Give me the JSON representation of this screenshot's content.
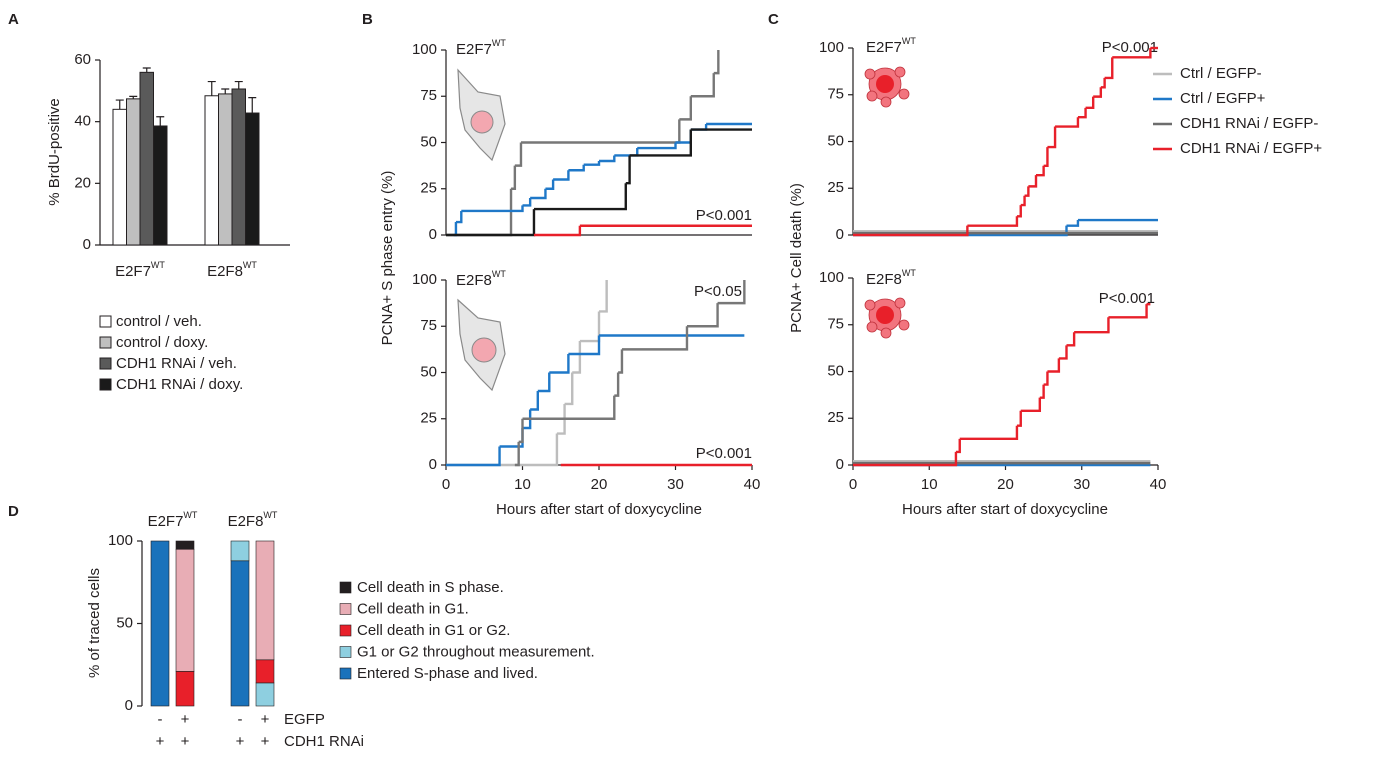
{
  "chart_data": [
    {
      "panel": "A",
      "type": "bar",
      "ylabel": "% BrdU-positive",
      "categories": [
        "E2F7",
        "E2F8"
      ],
      "category_superscript": "WT",
      "ylim": [
        0,
        60
      ],
      "yticks": [
        0,
        20,
        40,
        60
      ],
      "series": [
        {
          "name": "control / veh.",
          "color": "#ffffff",
          "values": [
            44,
            48.4
          ],
          "errors": [
            3,
            4.6
          ]
        },
        {
          "name": "control / doxy.",
          "color": "#bfbfbf",
          "values": [
            47.4,
            49
          ],
          "errors": [
            0.8,
            1.6
          ]
        },
        {
          "name": "CDH1 RNAi / veh.",
          "color": "#5a5a5a",
          "values": [
            56,
            50.6
          ],
          "errors": [
            1.4,
            2.4
          ]
        },
        {
          "name": "CDH1  RNAi / doxy.",
          "color": "#1a1a1a",
          "values": [
            38.6,
            42.8
          ],
          "errors": [
            3,
            5
          ]
        }
      ]
    },
    {
      "panel": "B",
      "type": "step",
      "label": "E2F7",
      "label_superscript": "WT",
      "ylabel": "PCNA+ S phase entry (%)",
      "xlim": [
        0,
        40
      ],
      "ylim": [
        0,
        100
      ],
      "yticks": [
        0,
        25,
        50,
        75,
        100
      ],
      "series": [
        {
          "color": "#777777",
          "x": [
            0,
            8.5,
            9,
            9.8,
            30.5,
            32,
            35,
            35.6
          ],
          "values": [
            0,
            25,
            37.5,
            50,
            62.5,
            75,
            87.5,
            100
          ]
        },
        {
          "color": "#1f78c8",
          "x": [
            1,
            1.3,
            2,
            10,
            11,
            13,
            14,
            16,
            18,
            20,
            22,
            25,
            30,
            32,
            34,
            40
          ],
          "values": [
            0,
            7,
            13,
            16,
            20,
            25,
            30,
            35,
            38,
            40,
            43,
            47,
            50,
            57,
            60,
            60
          ]
        },
        {
          "color": "#1a1a1a",
          "x": [
            0,
            11.5,
            23.5,
            24,
            32,
            40
          ],
          "values": [
            0,
            14,
            28,
            43,
            57,
            57
          ]
        },
        {
          "color": "#e8202a",
          "x": [
            11.5,
            17.5,
            40
          ],
          "values": [
            0,
            5,
            5
          ]
        }
      ],
      "annotations": [
        {
          "text": "P<0.001",
          "color": "#e8202a"
        }
      ]
    },
    {
      "type": "step",
      "label": "E2F8",
      "label_superscript": "WT",
      "xlabel": "Hours after start of doxycycline",
      "xlim": [
        0,
        40
      ],
      "xticks": [
        0,
        10,
        20,
        30,
        40
      ],
      "ylim": [
        0,
        100
      ],
      "yticks": [
        0,
        25,
        50,
        75,
        100
      ],
      "series": [
        {
          "color": "#bdbdbd",
          "x": [
            0,
            14.5,
            15.5,
            16.5,
            17.5,
            20,
            21
          ],
          "values": [
            0,
            17,
            33,
            50,
            67,
            83,
            100
          ]
        },
        {
          "color": "#1f78c8",
          "x": [
            0,
            7,
            10,
            11,
            12,
            13.5,
            16,
            20,
            39
          ],
          "values": [
            0,
            10,
            20,
            30,
            40,
            50,
            60,
            70,
            70
          ]
        },
        {
          "color": "#777777",
          "x": [
            9,
            9.5,
            10,
            22,
            22.5,
            23,
            31.5,
            35.5,
            39
          ],
          "values": [
            0,
            12.5,
            25,
            37.5,
            50,
            62.5,
            75,
            87.5,
            100
          ]
        },
        {
          "color": "#e8202a",
          "x": [
            15,
            40
          ],
          "values": [
            0,
            0
          ]
        }
      ],
      "annotations": [
        {
          "text": "P<0.05",
          "color": "#777777"
        },
        {
          "text": "P<0.001",
          "color": "#e8202a"
        }
      ]
    },
    {
      "panel": "C",
      "type": "step",
      "label": "E2F7",
      "label_superscript": "WT",
      "ylabel": "PCNA+ Cell death (%)",
      "xlim": [
        0,
        40
      ],
      "ylim": [
        0,
        100
      ],
      "yticks": [
        0,
        25,
        50,
        75,
        100
      ],
      "series": [
        {
          "name": "Ctrl / EGFP-",
          "color": "#bdbdbd",
          "x": [
            0,
            40
          ],
          "values": [
            2,
            2
          ]
        },
        {
          "name": "Ctrl / EGFP+",
          "color": "#1f78c8",
          "x": [
            0,
            28,
            29.5,
            40
          ],
          "values": [
            0,
            5,
            8,
            8
          ]
        },
        {
          "name": "CDH1 RNAi / EGFP-",
          "color": "#6d6d6d",
          "x": [
            0,
            40
          ],
          "values": [
            1,
            1
          ]
        },
        {
          "name": "CDH1 RNAi / EGFP+",
          "color": "#e8202a",
          "x": [
            0,
            15,
            21.5,
            22,
            22.5,
            23,
            24,
            25,
            25.5,
            26.5,
            29.5,
            30.5,
            31.5,
            32.5,
            33,
            34,
            39,
            40
          ],
          "values": [
            0,
            5,
            10,
            16,
            21,
            26,
            32,
            37,
            47,
            58,
            63,
            68,
            74,
            79,
            84,
            95,
            100,
            100
          ]
        }
      ],
      "legend": "right",
      "annotations": [
        {
          "text": "P<0.001",
          "color": "#e8202a"
        }
      ]
    },
    {
      "type": "step",
      "label": "E2F8",
      "label_superscript": "WT",
      "xlabel": "Hours after start of doxycycline",
      "xlim": [
        0,
        40
      ],
      "xticks": [
        0,
        10,
        20,
        30,
        40
      ],
      "ylim": [
        0,
        100
      ],
      "yticks": [
        0,
        25,
        50,
        75,
        100
      ],
      "series": [
        {
          "color": "#bdbdbd",
          "x": [
            0,
            39
          ],
          "values": [
            2,
            2
          ]
        },
        {
          "color": "#1f78c8",
          "x": [
            0,
            39
          ],
          "values": [
            0,
            0
          ]
        },
        {
          "color": "#6d6d6d",
          "x": [
            0,
            39
          ],
          "values": [
            1,
            1
          ]
        },
        {
          "color": "#e8202a",
          "x": [
            0,
            13.5,
            14,
            21.5,
            22,
            24.5,
            25,
            25.5,
            27,
            28,
            29,
            33.5,
            38.5,
            39
          ],
          "values": [
            0,
            7,
            14,
            21,
            29,
            36,
            43,
            50,
            57,
            64,
            71,
            79,
            86,
            86
          ]
        }
      ],
      "annotations": [
        {
          "text": "P<0.001",
          "color": "#e8202a"
        }
      ]
    },
    {
      "panel": "D",
      "type": "stacked_bar",
      "ylabel": "% of traced cells",
      "ylim": [
        0,
        100
      ],
      "yticks": [
        0,
        50,
        100
      ],
      "groups": [
        "E2F7",
        "E2F8"
      ],
      "group_superscript": "WT",
      "row_labels": [
        {
          "name": "EGFP",
          "values": [
            "-",
            "+",
            "-",
            "+"
          ]
        },
        {
          "name": "CDH1 RNAi",
          "values": [
            "+",
            "+",
            "+",
            "+"
          ]
        }
      ],
      "series": [
        {
          "name": "Entered S-phase and lived.",
          "color": "#1a72bb",
          "values": [
            100,
            0,
            88,
            0
          ]
        },
        {
          "name": "G1 or G2 throughout measurement.",
          "color": "#8ecfe0",
          "values": [
            0,
            0,
            12,
            14
          ]
        },
        {
          "name": "Cell death in G1 or G2.",
          "color": "#e8202a",
          "values": [
            0,
            21,
            0,
            14
          ]
        },
        {
          "name": "Cell death in G1.",
          "color": "#e8adb5",
          "values": [
            0,
            74,
            0,
            72
          ]
        },
        {
          "name": "Cell death in S phase.",
          "color": "#231f20",
          "values": [
            0,
            5,
            0,
            0
          ]
        }
      ]
    }
  ]
}
